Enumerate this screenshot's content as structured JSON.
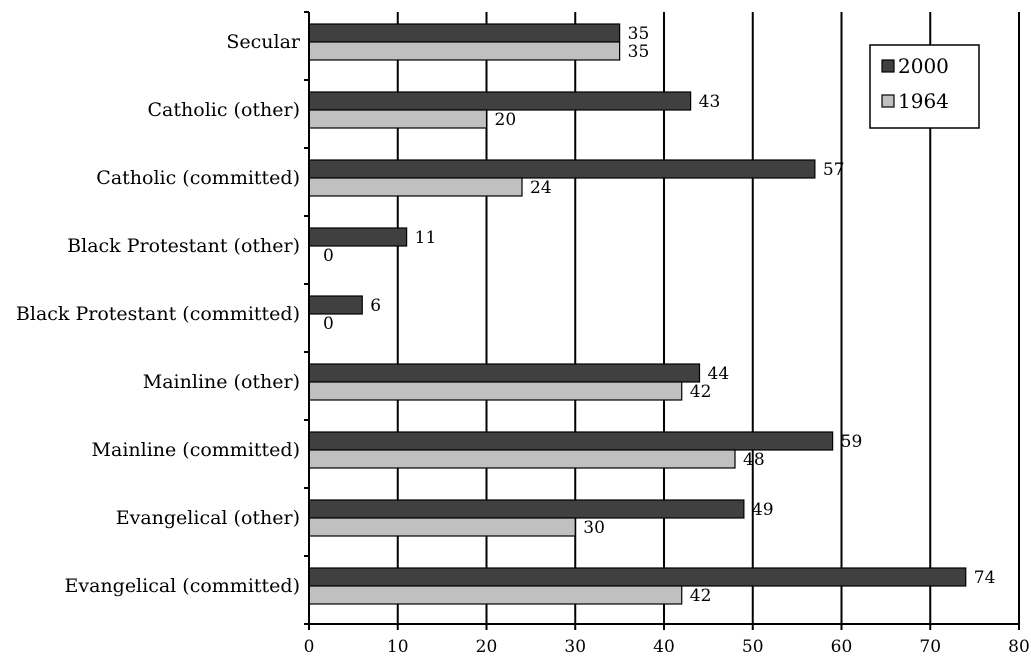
{
  "chart_data": {
    "type": "bar",
    "orientation": "horizontal",
    "categories": [
      "Secular",
      "Catholic (other)",
      "Catholic (committed)",
      "Black Protestant (other)",
      "Black Protestant (committed)",
      "Mainline (other)",
      "Mainline (committed)",
      "Evangelical (other)",
      "Evangelical (committed)"
    ],
    "series": [
      {
        "name": "2000",
        "values": [
          35,
          43,
          57,
          11,
          6,
          44,
          59,
          49,
          74
        ],
        "color": "#404040"
      },
      {
        "name": "1964",
        "values": [
          35,
          20,
          24,
          0,
          0,
          42,
          48,
          30,
          42
        ],
        "color": "#c0c0c0"
      }
    ],
    "xlim": [
      0,
      80
    ],
    "x_ticks": [
      0,
      10,
      20,
      30,
      40,
      50,
      60,
      70,
      80
    ],
    "grid": true,
    "legend_position": "top-right",
    "title": "",
    "xlabel": "",
    "ylabel": ""
  }
}
